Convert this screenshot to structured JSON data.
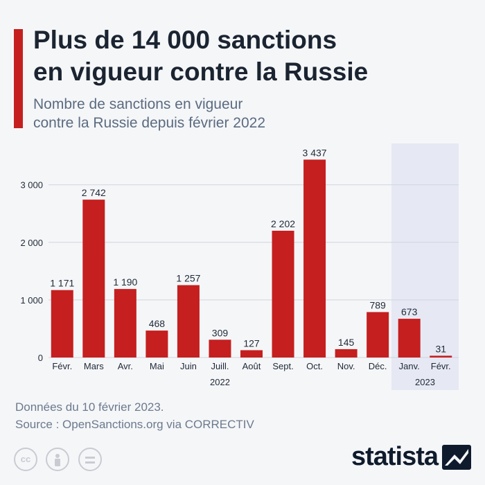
{
  "header": {
    "title_line1": "Plus de 14 000 sanctions",
    "title_line2": "en vigueur contre la Russie",
    "subtitle_line1": "Nombre de sanctions en vigueur",
    "subtitle_line2": "contre la Russie depuis février 2022",
    "accent_color": "#c51f1f"
  },
  "chart_data": {
    "type": "bar",
    "categories": [
      "Févr.",
      "Mars",
      "Avr.",
      "Mai",
      "Juin",
      "Juill.",
      "Août",
      "Sept.",
      "Oct.",
      "Nov.",
      "Déc.",
      "Janv.",
      "Févr."
    ],
    "values": [
      1171,
      2742,
      1190,
      468,
      1257,
      309,
      127,
      2202,
      3437,
      145,
      789,
      673,
      31
    ],
    "value_labels": [
      "1 171",
      "2 742",
      "1 190",
      "468",
      "1 257",
      "309",
      "127",
      "2 202",
      "3 437",
      "145",
      "789",
      "673",
      "31"
    ],
    "year_groups": [
      {
        "label": "2022",
        "start": 0,
        "end": 10
      },
      {
        "label": "2023",
        "start": 11,
        "end": 12
      }
    ],
    "highlight_group": "2023",
    "yticks": [
      0,
      1000,
      2000,
      3000
    ],
    "ytick_labels": [
      "0",
      "1 000",
      "2 000",
      "3 000"
    ],
    "ylim": [
      0,
      3500
    ],
    "grid": true,
    "bar_color": "#c51f1f",
    "highlight_color": "#e6e9f4"
  },
  "footer": {
    "note": "Données du 10 février 2023.",
    "source": "Source : OpenSanctions.org via CORRECTIV"
  },
  "branding": {
    "logo_text": "statista",
    "license_icons": [
      "cc-icon",
      "person-icon",
      "equal-icon"
    ]
  }
}
